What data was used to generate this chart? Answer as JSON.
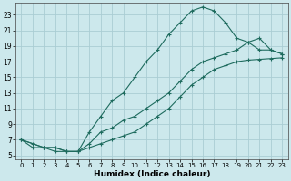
{
  "xlabel": "Humidex (Indice chaleur)",
  "bg_color": "#cce8ec",
  "grid_color": "#aacdd4",
  "line_color": "#1e6b5e",
  "xlim": [
    -0.5,
    23.5
  ],
  "ylim": [
    4.5,
    24.5
  ],
  "xticks": [
    0,
    1,
    2,
    3,
    4,
    5,
    6,
    7,
    8,
    9,
    10,
    11,
    12,
    13,
    14,
    15,
    16,
    17,
    18,
    19,
    20,
    21,
    22,
    23
  ],
  "yticks": [
    5,
    7,
    9,
    11,
    13,
    15,
    17,
    19,
    21,
    23
  ],
  "line1_x": [
    0,
    1,
    2,
    3,
    4,
    5,
    6,
    7,
    8,
    9,
    10,
    11,
    12,
    13,
    14,
    15,
    16,
    17,
    18,
    19,
    20,
    21,
    22,
    23
  ],
  "line1_y": [
    7,
    6,
    6,
    6,
    5.5,
    5.5,
    8,
    10,
    12,
    13,
    15,
    17,
    18.5,
    20.5,
    22,
    23.5,
    24,
    23.5,
    22,
    20,
    19.5,
    18.5,
    18.5,
    18
  ],
  "line2_x": [
    0,
    2,
    3,
    4,
    5,
    6,
    7,
    8,
    9,
    10,
    11,
    12,
    13,
    14,
    15,
    16,
    17,
    18,
    19,
    20,
    21,
    22,
    23
  ],
  "line2_y": [
    7,
    6,
    6,
    5.5,
    5.5,
    6.5,
    8,
    8.5,
    9.5,
    10,
    11,
    12,
    13,
    14.5,
    16,
    17,
    17.5,
    18,
    18.5,
    19.5,
    20,
    18.5,
    18
  ],
  "line3_x": [
    0,
    1,
    2,
    3,
    4,
    5,
    6,
    7,
    8,
    9,
    10,
    11,
    12,
    13,
    14,
    15,
    16,
    17,
    18,
    19,
    20,
    21,
    22,
    23
  ],
  "line3_y": [
    7,
    6.5,
    6,
    5.5,
    5.5,
    5.5,
    6,
    6.5,
    7,
    7.5,
    8,
    9,
    10,
    11,
    12.5,
    14,
    15,
    16,
    16.5,
    17,
    17.2,
    17.3,
    17.4,
    17.5
  ]
}
